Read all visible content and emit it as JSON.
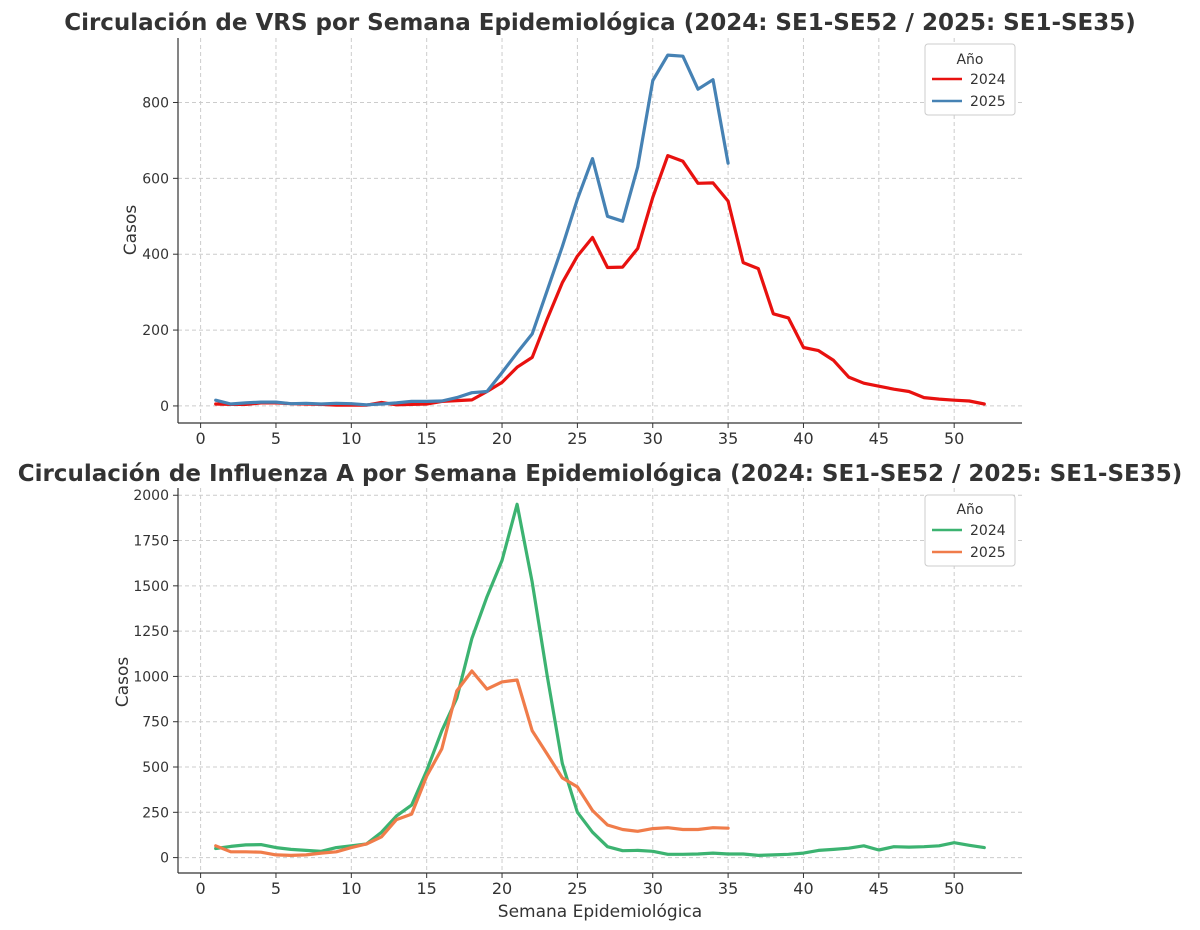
{
  "chart_data": [
    {
      "type": "line",
      "title": "Circulación de VRS por Semana Epidemiológica (2024: SE1-SE52 / 2025: SE1-SE35)",
      "xlabel": "",
      "ylabel": "Casos",
      "xlim": [
        -1.5,
        54.5
      ],
      "ylim": [
        -45,
        970
      ],
      "xticks": [
        0,
        5,
        10,
        15,
        20,
        25,
        30,
        35,
        40,
        45,
        50
      ],
      "yticks": [
        0,
        200,
        400,
        600,
        800
      ],
      "grid": true,
      "legend": {
        "title": "Año",
        "position": "top-right"
      },
      "series": [
        {
          "name": "2024",
          "color": "#e8110f",
          "x": [
            1,
            2,
            3,
            4,
            5,
            6,
            7,
            8,
            9,
            10,
            11,
            12,
            13,
            14,
            15,
            16,
            17,
            18,
            19,
            20,
            21,
            22,
            23,
            24,
            25,
            26,
            27,
            28,
            29,
            30,
            31,
            32,
            33,
            34,
            35,
            36,
            37,
            38,
            39,
            40,
            41,
            42,
            43,
            44,
            45,
            46,
            47,
            48,
            49,
            50,
            51,
            52
          ],
          "y": [
            5,
            4,
            4,
            8,
            8,
            6,
            5,
            4,
            2,
            2,
            2,
            9,
            3,
            4,
            5,
            12,
            14,
            16,
            38,
            62,
            102,
            128,
            230,
            325,
            395,
            444,
            365,
            366,
            415,
            550,
            660,
            645,
            587,
            588,
            540,
            378,
            362,
            243,
            232,
            154,
            146,
            120,
            76,
            60,
            52,
            44,
            38,
            22,
            18,
            15,
            13,
            5
          ]
        },
        {
          "name": "2025",
          "color": "#4682b4",
          "x": [
            1,
            2,
            3,
            4,
            5,
            6,
            7,
            8,
            9,
            10,
            11,
            12,
            13,
            14,
            15,
            16,
            17,
            18,
            19,
            20,
            21,
            22,
            23,
            24,
            25,
            26,
            27,
            28,
            29,
            30,
            31,
            32,
            33,
            34,
            35
          ],
          "y": [
            15,
            5,
            8,
            10,
            10,
            6,
            7,
            5,
            7,
            6,
            3,
            5,
            8,
            12,
            12,
            13,
            22,
            35,
            38,
            88,
            140,
            190,
            305,
            420,
            545,
            652,
            500,
            487,
            630,
            858,
            925,
            922,
            835,
            860,
            640
          ]
        }
      ]
    },
    {
      "type": "line",
      "title": "Circulación de Influenza A por Semana Epidemiológica (2024: SE1-SE52 / 2025: SE1-SE35)",
      "xlabel": "Semana Epidemiológica",
      "ylabel": "Casos",
      "xlim": [
        -1.5,
        54.5
      ],
      "ylim": [
        -85,
        2040
      ],
      "xticks": [
        0,
        5,
        10,
        15,
        20,
        25,
        30,
        35,
        40,
        45,
        50
      ],
      "yticks": [
        0,
        250,
        500,
        750,
        1000,
        1250,
        1500,
        1750,
        2000
      ],
      "grid": true,
      "legend": {
        "title": "Año",
        "position": "top-right"
      },
      "series": [
        {
          "name": "2024",
          "color": "#3cb371",
          "x": [
            1,
            2,
            3,
            4,
            5,
            6,
            7,
            8,
            9,
            10,
            11,
            12,
            13,
            14,
            15,
            16,
            17,
            18,
            19,
            20,
            21,
            22,
            23,
            24,
            25,
            26,
            27,
            28,
            29,
            30,
            31,
            32,
            33,
            34,
            35,
            36,
            37,
            38,
            39,
            40,
            41,
            42,
            43,
            44,
            45,
            46,
            47,
            48,
            49,
            50,
            51,
            52
          ],
          "y": [
            50,
            62,
            70,
            72,
            55,
            45,
            40,
            35,
            55,
            65,
            75,
            140,
            230,
            290,
            480,
            700,
            880,
            1210,
            1440,
            1640,
            1950,
            1520,
            1000,
            520,
            250,
            140,
            60,
            38,
            40,
            35,
            18,
            18,
            20,
            25,
            20,
            20,
            12,
            15,
            18,
            25,
            40,
            45,
            52,
            65,
            42,
            60,
            58,
            60,
            65,
            82,
            68,
            55
          ]
        },
        {
          "name": "2025",
          "color": "#f07c4a",
          "x": [
            1,
            2,
            3,
            4,
            5,
            6,
            7,
            8,
            9,
            10,
            11,
            12,
            13,
            14,
            15,
            16,
            17,
            18,
            19,
            20,
            21,
            22,
            23,
            24,
            25,
            26,
            27,
            28,
            29,
            30,
            31,
            32,
            33,
            34,
            35
          ],
          "y": [
            65,
            32,
            32,
            30,
            15,
            12,
            15,
            25,
            32,
            55,
            75,
            115,
            210,
            240,
            450,
            600,
            920,
            1030,
            930,
            970,
            980,
            700,
            570,
            440,
            390,
            260,
            180,
            155,
            145,
            160,
            165,
            155,
            155,
            165,
            162
          ]
        }
      ]
    }
  ]
}
